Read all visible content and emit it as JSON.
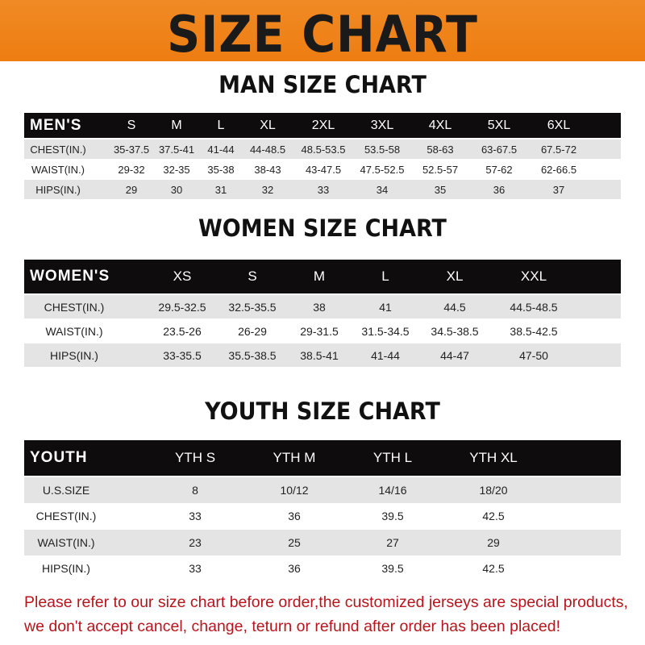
{
  "title": "SIZE CHART",
  "colors": {
    "banner": "#ef8320",
    "header_row": "#0e0c0c",
    "footer_text": "#b8141c"
  },
  "men": {
    "title": "MAN SIZE CHART",
    "header": [
      "MEN'S",
      "S",
      "M",
      "L",
      "XL",
      "2XL",
      "3XL",
      "4XL",
      "5XL",
      "6XL"
    ],
    "rows": [
      [
        "CHEST(IN.)",
        "35-37.5",
        "37.5-41",
        "41-44",
        "44-48.5",
        "48.5-53.5",
        "53.5-58",
        "58-63",
        "63-67.5",
        "67.5-72"
      ],
      [
        "WAIST(IN.)",
        "29-32",
        "32-35",
        "35-38",
        "38-43",
        "43-47.5",
        "47.5-52.5",
        "52.5-57",
        "57-62",
        "62-66.5"
      ],
      [
        "HIPS(IN.)",
        "29",
        "30",
        "31",
        "32",
        "33",
        "34",
        "35",
        "36",
        "37"
      ]
    ]
  },
  "women": {
    "title": "WOMEN SIZE CHART",
    "header": [
      "WOMEN'S",
      "XS",
      "S",
      "M",
      "L",
      "XL",
      "XXL"
    ],
    "rows": [
      [
        "CHEST(IN.)",
        "29.5-32.5",
        "32.5-35.5",
        "38",
        "41",
        "44.5",
        "44.5-48.5"
      ],
      [
        "WAIST(IN.)",
        "23.5-26",
        "26-29",
        "29-31.5",
        "31.5-34.5",
        "34.5-38.5",
        "38.5-42.5"
      ],
      [
        "HIPS(IN.)",
        "33-35.5",
        "35.5-38.5",
        "38.5-41",
        "41-44",
        "44-47",
        "47-50"
      ]
    ]
  },
  "youth": {
    "title": "YOUTH SIZE CHART",
    "header": [
      "YOUTH",
      "YTH S",
      "YTH M",
      "YTH L",
      "YTH XL"
    ],
    "rows": [
      [
        "U.S.SIZE",
        "8",
        "10/12",
        "14/16",
        "18/20"
      ],
      [
        "CHEST(IN.)",
        "33",
        "36",
        "39.5",
        "42.5"
      ],
      [
        "WAIST(IN.)",
        "23",
        "25",
        "27",
        "29"
      ],
      [
        "HIPS(IN.)",
        "33",
        "36",
        "39.5",
        "42.5"
      ]
    ]
  },
  "footer": {
    "line1": "Please refer to our size chart before order,the customized jerseys are special products,",
    "line2": "we don't accept cancel, change, teturn or refund after order has been placed!"
  }
}
